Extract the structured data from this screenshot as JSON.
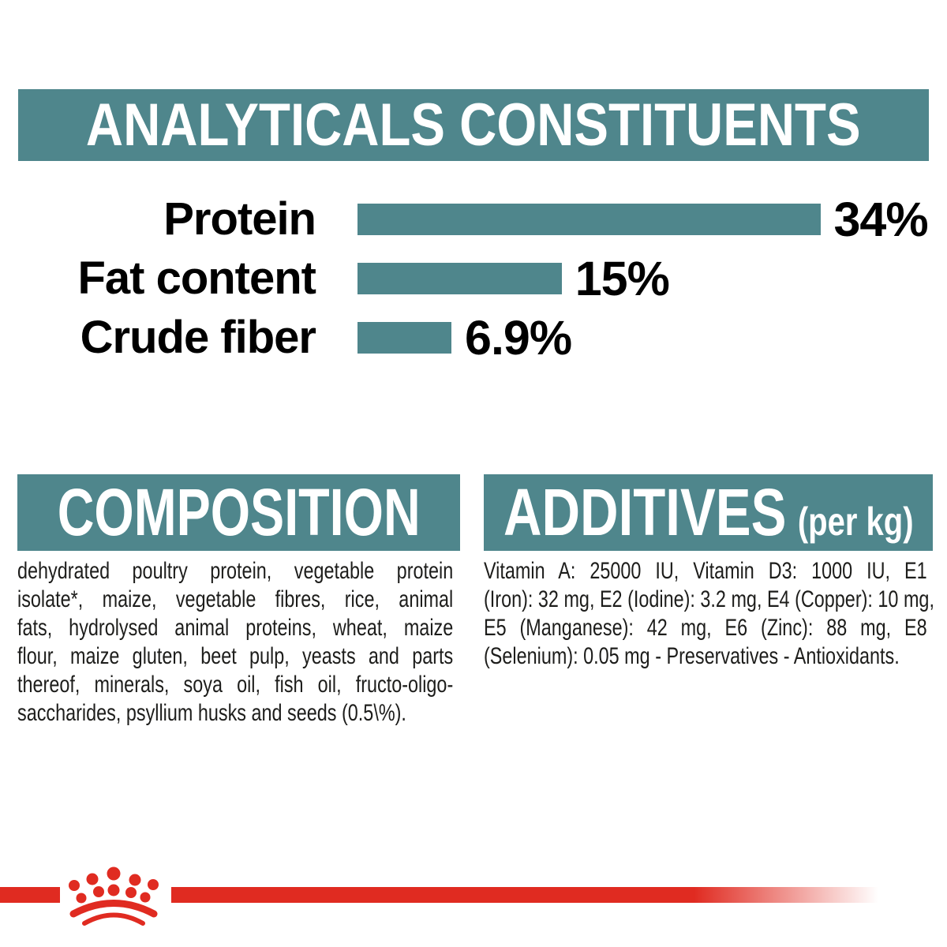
{
  "colors": {
    "teal": "#4f868c",
    "brand_red": "#e02b21",
    "text": "#1d1d1b",
    "banner_text": "#ffffff"
  },
  "header": {
    "title": "ANALYTICALS CONSTITUENTS"
  },
  "chart_data": {
    "type": "bar",
    "orientation": "horizontal",
    "title": "ANALYTICALS CONSTITUENTS",
    "categories": [
      "Protein",
      "Fat content",
      "Crude fiber"
    ],
    "values": [
      34,
      15,
      6.9
    ],
    "value_labels": [
      "34%",
      "15%",
      "6.9%"
    ],
    "xlabel": "",
    "ylabel": "",
    "xlim": [
      0,
      34
    ],
    "grid": false,
    "legend": false,
    "bar_color": "#4f868c",
    "rows": [
      {
        "label": "Protein",
        "value": 34,
        "display": "34%"
      },
      {
        "label": "Fat content",
        "value": 15,
        "display": "15%"
      },
      {
        "label": "Crude fiber",
        "value": 6.9,
        "display": "6.9%"
      }
    ]
  },
  "composition": {
    "title": "COMPOSITION",
    "text": "dehydrated poultry protein, vegetable protein isolate*, maize, vegetable fibres, rice, animal fats, hydrolysed animal proteins, wheat, maize flour, maize gluten, beet pulp, yeasts and parts thereof, minerals, soya oil, fish oil, fructo-oligo-saccharides, psyllium husks and seeds (0.5\\%).",
    "lines": [
      "dehydrated poultry protein, vegetable protein",
      "isolate*, maize, vegetable fibres, rice, animal",
      "fats, hydrolysed animal proteins, wheat, maize",
      "flour, maize gluten, beet pulp, yeasts and parts",
      "thereof, minerals, soya oil, fish oil, fructo-oligo-",
      "saccharides, psyllium husks and seeds (0.5\\%)."
    ]
  },
  "additives": {
    "title": "ADDITIVES",
    "unit_suffix": "(per kg)",
    "text": "Vitamin A: 25000 IU, Vitamin D3: 1000 IU, E1 (Iron): 32 mg, E2 (Iodine): 3.2 mg, E4 (Copper): 10 mg, E5 (Manganese): 42 mg, E6 (Zinc): 88 mg, E8 (Selenium): 0.05 mg - Preservatives - Antioxidants.",
    "lines": [
      "Vitamin A: 25000 IU, Vitamin D3: 1000 IU, E1",
      "(Iron): 32 mg, E2 (Iodine): 3.2 mg, E4 (Copper): 10 mg,",
      "E5 (Manganese): 42 mg, E6 (Zinc): 88 mg, E8",
      "(Selenium): 0.05 mg - Preservatives - Antioxidants."
    ]
  },
  "footer": {
    "brand_logo": "royal-canin-crown"
  }
}
